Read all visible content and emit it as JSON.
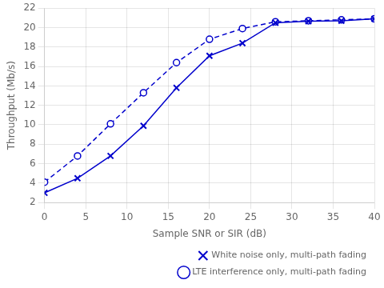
{
  "chart_data": {
    "type": "line",
    "x": [
      0,
      4,
      8,
      12,
      16,
      20,
      24,
      28,
      32,
      36,
      40
    ],
    "series": [
      {
        "name": "White noise only, multi-path fading",
        "color": "#0000CC",
        "values": [
          3.0,
          4.5,
          6.8,
          9.9,
          13.8,
          17.1,
          18.4,
          20.5,
          20.65,
          20.7,
          20.9
        ],
        "marker": "x",
        "line_style": "solid"
      },
      {
        "name": "LTE interference only, multi-path fading",
        "color": "#0000CC",
        "values": [
          4.1,
          6.8,
          10.1,
          13.3,
          16.4,
          18.8,
          19.9,
          20.6,
          20.7,
          20.8,
          20.9
        ],
        "marker": "circle",
        "line_style": "dashed"
      }
    ],
    "xlabel": "Sample SNR or SIR (dB)",
    "ylabel": "Throughput (Mb/s)",
    "xlim": [
      0,
      40
    ],
    "ylim": [
      2,
      22
    ],
    "xticks": [
      0,
      5,
      10,
      15,
      20,
      25,
      30,
      35,
      40
    ],
    "yticks": [
      2,
      4,
      6,
      8,
      10,
      12,
      14,
      16,
      18,
      20,
      22
    ],
    "grid": true,
    "legend": "lower right"
  }
}
